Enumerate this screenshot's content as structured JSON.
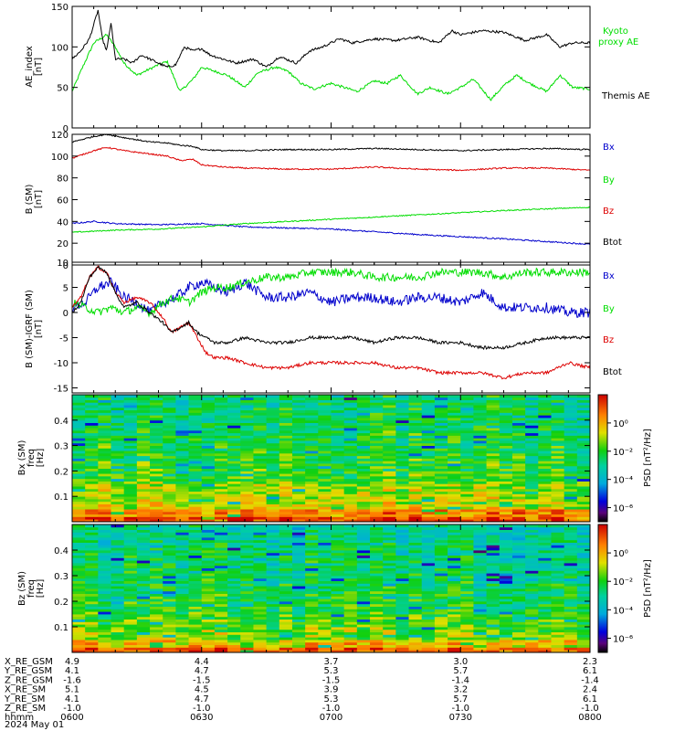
{
  "chart_data": [
    {
      "type": "line",
      "ylabel": "AE_index",
      "yunit": "[nT]",
      "ylim": [
        0,
        150
      ],
      "yticks": [
        0,
        50,
        100,
        150
      ],
      "xlim": [
        "06:00",
        "08:00"
      ],
      "series": [
        {
          "name": "Kyoto proxy AE",
          "color": "#00dd00",
          "x_min": [
            0,
            2,
            5,
            8,
            10,
            12,
            15,
            20,
            22,
            25,
            28,
            30,
            33,
            36,
            40,
            43,
            47,
            50,
            53,
            56,
            60,
            63,
            66,
            70,
            73,
            76,
            80,
            83,
            87,
            90,
            93,
            97,
            100,
            103,
            106,
            110,
            113,
            116,
            120
          ],
          "values": [
            45,
            70,
            105,
            115,
            100,
            80,
            65,
            78,
            82,
            45,
            60,
            75,
            70,
            65,
            50,
            68,
            75,
            70,
            55,
            48,
            55,
            50,
            45,
            58,
            55,
            65,
            42,
            50,
            42,
            50,
            60,
            35,
            52,
            65,
            55,
            45,
            65,
            50,
            48
          ]
        },
        {
          "name": "Themis AE",
          "color": "#000000",
          "x_min": [
            0,
            2,
            4,
            6,
            7,
            8,
            9,
            10,
            11,
            12,
            14,
            16,
            18,
            20,
            22,
            24,
            26,
            28,
            30,
            32,
            35,
            38,
            42,
            45,
            48,
            52,
            55,
            58,
            62,
            65,
            70,
            75,
            80,
            85,
            88,
            90,
            95,
            100,
            105,
            110,
            113,
            116,
            120
          ],
          "values": [
            85,
            95,
            110,
            145,
            110,
            95,
            130,
            85,
            85,
            85,
            80,
            90,
            85,
            80,
            75,
            78,
            100,
            95,
            98,
            90,
            85,
            80,
            85,
            75,
            88,
            80,
            95,
            100,
            110,
            105,
            110,
            108,
            112,
            105,
            120,
            115,
            120,
            118,
            108,
            115,
            100,
            105,
            105
          ]
        }
      ]
    },
    {
      "type": "line",
      "ylabel": "B (SM)",
      "yunit": "[nT]",
      "ylim": [
        0,
        120
      ],
      "yticks": [
        0,
        20,
        40,
        60,
        80,
        100,
        120
      ],
      "xlim": [
        "06:00",
        "08:00"
      ],
      "series": [
        {
          "name": "Bx",
          "color": "#0000cc",
          "x_min": [
            0,
            5,
            10,
            20,
            30,
            40,
            60,
            80,
            100,
            120
          ],
          "values": [
            38,
            40,
            38,
            37,
            38,
            35,
            33,
            28,
            24,
            19
          ]
        },
        {
          "name": "By",
          "color": "#00dd00",
          "x_min": [
            0,
            10,
            20,
            30,
            40,
            60,
            80,
            100,
            120
          ],
          "values": [
            30,
            32,
            33,
            35,
            38,
            42,
            46,
            50,
            53
          ]
        },
        {
          "name": "Bz",
          "color": "#dd0000",
          "x_min": [
            0,
            5,
            8,
            12,
            18,
            22,
            25,
            28,
            30,
            35,
            40,
            50,
            60,
            70,
            80,
            90,
            100,
            110,
            120
          ],
          "values": [
            98,
            105,
            108,
            105,
            102,
            100,
            96,
            97,
            92,
            90,
            89,
            88,
            88,
            90,
            88,
            87,
            89,
            89,
            87
          ]
        },
        {
          "name": "Btot",
          "color": "#000000",
          "x_min": [
            0,
            5,
            8,
            12,
            18,
            22,
            25,
            28,
            30,
            35,
            40,
            50,
            60,
            70,
            80,
            90,
            100,
            110,
            120
          ],
          "values": [
            113,
            118,
            120,
            117,
            113,
            112,
            110,
            109,
            106,
            105,
            105,
            106,
            106,
            107,
            106,
            105,
            106,
            107,
            106
          ]
        }
      ]
    },
    {
      "type": "line",
      "ylabel": "B (SM)-IGRF (SM)",
      "yunit": "[nT]",
      "ylim": [
        -16,
        10
      ],
      "yticks": [
        -15,
        -10,
        -5,
        0,
        5,
        10
      ],
      "xlim": [
        "06:00",
        "08:00"
      ],
      "series": [
        {
          "name": "Bx",
          "color": "#0000cc",
          "x_min": [
            0,
            3,
            6,
            9,
            12,
            15,
            18,
            21,
            24,
            27,
            30,
            33,
            36,
            40,
            45,
            50,
            55,
            60,
            65,
            70,
            75,
            80,
            85,
            90,
            95,
            100,
            105,
            110,
            115,
            120
          ],
          "values": [
            1,
            2,
            5,
            6,
            3,
            2,
            0,
            2,
            3,
            5,
            6,
            5,
            4,
            6,
            3,
            3,
            4,
            2,
            3,
            3,
            2,
            3,
            3,
            2,
            4,
            1,
            1,
            1,
            0,
            0
          ]
        },
        {
          "name": "By",
          "color": "#00dd00",
          "x_min": [
            0,
            3,
            6,
            9,
            12,
            15,
            18,
            21,
            24,
            27,
            30,
            33,
            36,
            40,
            45,
            50,
            55,
            60,
            65,
            70,
            75,
            80,
            85,
            90,
            95,
            100,
            105,
            110,
            115,
            120
          ],
          "values": [
            2,
            1,
            0,
            1,
            0,
            1,
            0,
            2,
            3,
            2,
            4,
            5,
            5,
            6,
            7,
            7,
            8,
            8,
            8,
            7,
            7,
            7,
            8,
            8,
            8,
            7,
            8,
            8,
            8,
            8
          ]
        },
        {
          "name": "Bz",
          "color": "#dd0000",
          "x_min": [
            0,
            2,
            4,
            6,
            8,
            10,
            12,
            15,
            18,
            21,
            23,
            25,
            27,
            29,
            31,
            33,
            36,
            40,
            45,
            50,
            55,
            60,
            65,
            70,
            75,
            80,
            85,
            90,
            95,
            100,
            105,
            110,
            115,
            120
          ],
          "values": [
            1,
            3,
            7,
            9,
            8,
            4,
            2,
            3,
            2,
            -1,
            -4,
            -3,
            -2,
            -5,
            -8,
            -9,
            -9,
            -10,
            -11,
            -11,
            -10,
            -10,
            -10,
            -10,
            -11,
            -11,
            -12,
            -12,
            -12,
            -13,
            -12,
            -12,
            -10,
            -11
          ]
        },
        {
          "name": "Btot",
          "color": "#000000",
          "x_min": [
            0,
            2,
            4,
            6,
            8,
            10,
            12,
            15,
            18,
            21,
            23,
            25,
            27,
            29,
            31,
            33,
            36,
            40,
            45,
            50,
            55,
            60,
            65,
            70,
            75,
            80,
            85,
            90,
            95,
            100,
            105,
            110,
            115,
            120
          ],
          "values": [
            0,
            2,
            7,
            9,
            8,
            4,
            1,
            2,
            0,
            -2,
            -4,
            -3,
            -2,
            -4,
            -5,
            -6,
            -6,
            -5,
            -6,
            -6,
            -5,
            -5,
            -5,
            -6,
            -5,
            -5,
            -6,
            -6,
            -7,
            -7,
            -6,
            -5,
            -5,
            -5
          ]
        }
      ]
    },
    {
      "type": "heatmap",
      "ylabel": "Bx (SM)",
      "ylabel2": "freq",
      "yunit": "[Hz]",
      "ylim": [
        0,
        0.5
      ],
      "yticks": [
        0.1,
        0.2,
        0.3,
        0.4
      ],
      "colorbar_label": "PSD [nT²/Hz]",
      "colorbar_ticks": [
        "10⁰",
        "10⁻²",
        "10⁻⁴",
        "10⁻⁶"
      ],
      "colorbar_exponents": [
        0,
        -2,
        -4,
        -6
      ],
      "colorbar_range": [
        -7,
        2
      ],
      "xlim": [
        "06:00",
        "08:00"
      ]
    },
    {
      "type": "heatmap",
      "ylabel": "Bz (SM)",
      "ylabel2": "freq",
      "yunit": "[Hz]",
      "ylim": [
        0,
        0.5
      ],
      "yticks": [
        0.1,
        0.2,
        0.3,
        0.4
      ],
      "colorbar_label": "PSD [nT²/Hz]",
      "colorbar_ticks": [
        "10⁰",
        "10⁻²",
        "10⁻⁴",
        "10⁻⁶"
      ],
      "colorbar_exponents": [
        0,
        -2,
        -4,
        -6
      ],
      "colorbar_range": [
        -7,
        2
      ],
      "xlim": [
        "06:00",
        "08:00"
      ]
    }
  ],
  "legends": [
    {
      "labels": [
        "Kyoto",
        "proxy AE",
        "Themis AE"
      ],
      "colors": [
        "#00dd00",
        "#00dd00",
        "#000000"
      ]
    },
    {
      "labels": [
        "Bx",
        "By",
        "Bz",
        "Btot"
      ],
      "colors": [
        "#0000cc",
        "#00dd00",
        "#dd0000",
        "#000000"
      ]
    },
    {
      "labels": [
        "Bx",
        "By",
        "Bz",
        "Btot"
      ],
      "colors": [
        "#0000cc",
        "#00dd00",
        "#dd0000",
        "#000000"
      ]
    }
  ],
  "ephemeris": {
    "rows": [
      {
        "label": "X_RE_GSM",
        "values": [
          "4.9",
          "4.4",
          "3.7",
          "3.0",
          "2.3"
        ]
      },
      {
        "label": "Y_RE_GSM",
        "values": [
          "4.1",
          "4.7",
          "5.3",
          "5.7",
          "6.1"
        ]
      },
      {
        "label": "Z_RE_GSM",
        "values": [
          "-1.6",
          "-1.5",
          "-1.5",
          "-1.4",
          "-1.4"
        ]
      },
      {
        "label": "X_RE_SM",
        "values": [
          "5.1",
          "4.5",
          "3.9",
          "3.2",
          "2.4"
        ]
      },
      {
        "label": "Y_RE_SM",
        "values": [
          "4.1",
          "4.7",
          "5.3",
          "5.7",
          "6.1"
        ]
      },
      {
        "label": "Z_RE_SM",
        "values": [
          "-1.0",
          "-1.0",
          "-1.0",
          "-1.0",
          "-1.0"
        ]
      },
      {
        "label": "hhmm",
        "values": [
          "0600",
          "0630",
          "0700",
          "0730",
          "0800"
        ]
      }
    ],
    "date": "2024 May 01"
  }
}
